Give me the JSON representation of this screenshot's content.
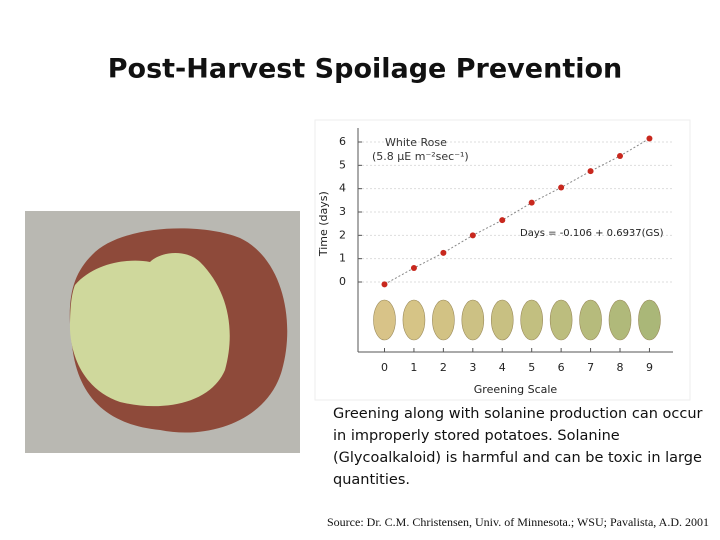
{
  "title": "Post-Harvest Spoilage Prevention",
  "caption_lines": [
    "Greening along with solanine production can occur",
    "in improperly stored potatoes. Solanine",
    "(Glycoalkaloid) is harmful and can be toxic in large",
    "quantities."
  ],
  "source": "Source: Dr. C.M. Christensen, Univ. of Minnesota.; WSU; Pavalista, A.D. 2001",
  "chart_data": {
    "type": "scatter",
    "title": "White Rose",
    "subtitle": "(5.8 μE m⁻²sec⁻¹)",
    "annotation": "Days = -0.106 + 0.6937(GS)",
    "x_label": "Greening Scale",
    "y_label": "Time (days)",
    "x": [
      0,
      1,
      2,
      3,
      4,
      5,
      6,
      7,
      8,
      9
    ],
    "series": [
      {
        "name": "White Rose",
        "color": "#c8281e",
        "values": [
          -0.1,
          0.6,
          1.25,
          2.0,
          2.65,
          3.4,
          4.05,
          4.75,
          5.4,
          6.15
        ]
      }
    ],
    "xlim": [
      -0.9,
      9.8
    ],
    "ylim": [
      -3,
      6.6
    ],
    "xticks": [
      0,
      1,
      2,
      3,
      4,
      5,
      6,
      7,
      8,
      9
    ],
    "yticks": [
      0,
      1,
      2,
      3,
      4,
      5,
      6
    ],
    "grid": true
  }
}
